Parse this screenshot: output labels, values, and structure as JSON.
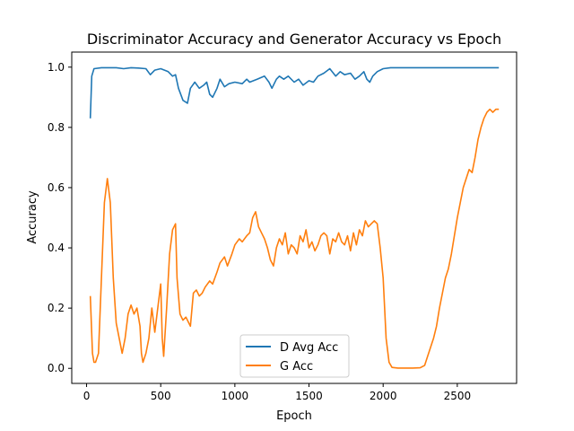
{
  "chart_data": {
    "type": "line",
    "title": "Discriminator Accuracy and Generator Accuracy vs Epoch",
    "xlabel": "Epoch",
    "ylabel": "Accuracy",
    "xlim": [
      -100,
      2900
    ],
    "ylim": [
      -0.05,
      1.05
    ],
    "xticks": [
      0,
      500,
      1000,
      1500,
      2000,
      2500
    ],
    "yticks": [
      0.0,
      0.2,
      0.4,
      0.6,
      0.8,
      1.0
    ],
    "legend": {
      "position": "lower-center"
    },
    "series": [
      {
        "name": "D Avg Acc",
        "color": "#1f77b4",
        "points": [
          [
            25,
            0.83
          ],
          [
            35,
            0.97
          ],
          [
            50,
            0.995
          ],
          [
            100,
            0.998
          ],
          [
            200,
            0.998
          ],
          [
            250,
            0.995
          ],
          [
            300,
            0.998
          ],
          [
            350,
            0.997
          ],
          [
            400,
            0.995
          ],
          [
            430,
            0.975
          ],
          [
            460,
            0.99
          ],
          [
            500,
            0.995
          ],
          [
            550,
            0.985
          ],
          [
            580,
            0.97
          ],
          [
            600,
            0.975
          ],
          [
            620,
            0.93
          ],
          [
            650,
            0.89
          ],
          [
            680,
            0.88
          ],
          [
            700,
            0.93
          ],
          [
            730,
            0.95
          ],
          [
            760,
            0.93
          ],
          [
            790,
            0.94
          ],
          [
            810,
            0.95
          ],
          [
            830,
            0.91
          ],
          [
            850,
            0.9
          ],
          [
            880,
            0.93
          ],
          [
            900,
            0.96
          ],
          [
            930,
            0.935
          ],
          [
            960,
            0.945
          ],
          [
            1000,
            0.95
          ],
          [
            1050,
            0.945
          ],
          [
            1080,
            0.96
          ],
          [
            1100,
            0.95
          ],
          [
            1150,
            0.96
          ],
          [
            1200,
            0.97
          ],
          [
            1230,
            0.95
          ],
          [
            1250,
            0.93
          ],
          [
            1280,
            0.96
          ],
          [
            1300,
            0.97
          ],
          [
            1330,
            0.96
          ],
          [
            1360,
            0.97
          ],
          [
            1400,
            0.95
          ],
          [
            1430,
            0.96
          ],
          [
            1460,
            0.94
          ],
          [
            1500,
            0.955
          ],
          [
            1530,
            0.95
          ],
          [
            1560,
            0.97
          ],
          [
            1600,
            0.98
          ],
          [
            1640,
            0.995
          ],
          [
            1680,
            0.97
          ],
          [
            1710,
            0.985
          ],
          [
            1740,
            0.975
          ],
          [
            1780,
            0.98
          ],
          [
            1810,
            0.96
          ],
          [
            1840,
            0.97
          ],
          [
            1870,
            0.985
          ],
          [
            1890,
            0.96
          ],
          [
            1910,
            0.95
          ],
          [
            1930,
            0.97
          ],
          [
            1960,
            0.985
          ],
          [
            2000,
            0.995
          ],
          [
            2050,
            0.998
          ],
          [
            2200,
            0.998
          ],
          [
            2400,
            0.998
          ],
          [
            2600,
            0.998
          ],
          [
            2780,
            0.998
          ]
        ]
      },
      {
        "name": "G Acc",
        "color": "#ff7f0e",
        "points": [
          [
            25,
            0.24
          ],
          [
            40,
            0.05
          ],
          [
            50,
            0.02
          ],
          [
            60,
            0.02
          ],
          [
            80,
            0.05
          ],
          [
            100,
            0.3
          ],
          [
            120,
            0.55
          ],
          [
            140,
            0.63
          ],
          [
            160,
            0.55
          ],
          [
            180,
            0.3
          ],
          [
            200,
            0.15
          ],
          [
            220,
            0.1
          ],
          [
            240,
            0.05
          ],
          [
            260,
            0.1
          ],
          [
            280,
            0.18
          ],
          [
            300,
            0.21
          ],
          [
            320,
            0.18
          ],
          [
            340,
            0.2
          ],
          [
            360,
            0.14
          ],
          [
            370,
            0.05
          ],
          [
            380,
            0.02
          ],
          [
            400,
            0.05
          ],
          [
            420,
            0.1
          ],
          [
            440,
            0.2
          ],
          [
            460,
            0.12
          ],
          [
            480,
            0.2
          ],
          [
            500,
            0.28
          ],
          [
            510,
            0.1
          ],
          [
            520,
            0.04
          ],
          [
            540,
            0.2
          ],
          [
            560,
            0.38
          ],
          [
            580,
            0.46
          ],
          [
            600,
            0.48
          ],
          [
            610,
            0.3
          ],
          [
            630,
            0.18
          ],
          [
            650,
            0.16
          ],
          [
            670,
            0.17
          ],
          [
            690,
            0.15
          ],
          [
            700,
            0.14
          ],
          [
            720,
            0.25
          ],
          [
            740,
            0.26
          ],
          [
            760,
            0.24
          ],
          [
            780,
            0.25
          ],
          [
            800,
            0.27
          ],
          [
            830,
            0.29
          ],
          [
            850,
            0.28
          ],
          [
            880,
            0.32
          ],
          [
            900,
            0.35
          ],
          [
            930,
            0.37
          ],
          [
            950,
            0.34
          ],
          [
            980,
            0.38
          ],
          [
            1000,
            0.41
          ],
          [
            1030,
            0.43
          ],
          [
            1050,
            0.42
          ],
          [
            1080,
            0.44
          ],
          [
            1100,
            0.45
          ],
          [
            1120,
            0.5
          ],
          [
            1140,
            0.52
          ],
          [
            1160,
            0.47
          ],
          [
            1180,
            0.45
          ],
          [
            1200,
            0.43
          ],
          [
            1220,
            0.4
          ],
          [
            1240,
            0.36
          ],
          [
            1260,
            0.34
          ],
          [
            1280,
            0.4
          ],
          [
            1300,
            0.43
          ],
          [
            1320,
            0.41
          ],
          [
            1340,
            0.45
          ],
          [
            1360,
            0.38
          ],
          [
            1380,
            0.41
          ],
          [
            1400,
            0.4
          ],
          [
            1420,
            0.38
          ],
          [
            1440,
            0.44
          ],
          [
            1460,
            0.42
          ],
          [
            1480,
            0.46
          ],
          [
            1500,
            0.4
          ],
          [
            1520,
            0.42
          ],
          [
            1540,
            0.39
          ],
          [
            1560,
            0.41
          ],
          [
            1580,
            0.44
          ],
          [
            1600,
            0.45
          ],
          [
            1620,
            0.44
          ],
          [
            1640,
            0.38
          ],
          [
            1660,
            0.43
          ],
          [
            1680,
            0.42
          ],
          [
            1700,
            0.45
          ],
          [
            1720,
            0.42
          ],
          [
            1740,
            0.41
          ],
          [
            1760,
            0.44
          ],
          [
            1780,
            0.39
          ],
          [
            1800,
            0.45
          ],
          [
            1820,
            0.41
          ],
          [
            1840,
            0.46
          ],
          [
            1860,
            0.44
          ],
          [
            1880,
            0.49
          ],
          [
            1900,
            0.47
          ],
          [
            1920,
            0.48
          ],
          [
            1940,
            0.49
          ],
          [
            1960,
            0.48
          ],
          [
            1980,
            0.4
          ],
          [
            2000,
            0.3
          ],
          [
            2020,
            0.1
          ],
          [
            2040,
            0.02
          ],
          [
            2060,
            0.003
          ],
          [
            2100,
            0.001
          ],
          [
            2150,
            0.001
          ],
          [
            2200,
            0.001
          ],
          [
            2250,
            0.002
          ],
          [
            2280,
            0.01
          ],
          [
            2300,
            0.04
          ],
          [
            2320,
            0.07
          ],
          [
            2340,
            0.1
          ],
          [
            2360,
            0.14
          ],
          [
            2380,
            0.2
          ],
          [
            2400,
            0.25
          ],
          [
            2420,
            0.3
          ],
          [
            2440,
            0.33
          ],
          [
            2460,
            0.38
          ],
          [
            2480,
            0.44
          ],
          [
            2500,
            0.5
          ],
          [
            2520,
            0.55
          ],
          [
            2540,
            0.6
          ],
          [
            2560,
            0.63
          ],
          [
            2580,
            0.66
          ],
          [
            2600,
            0.65
          ],
          [
            2620,
            0.7
          ],
          [
            2640,
            0.76
          ],
          [
            2660,
            0.8
          ],
          [
            2680,
            0.83
          ],
          [
            2700,
            0.85
          ],
          [
            2720,
            0.86
          ],
          [
            2740,
            0.85
          ],
          [
            2760,
            0.86
          ],
          [
            2780,
            0.86
          ]
        ]
      }
    ]
  }
}
